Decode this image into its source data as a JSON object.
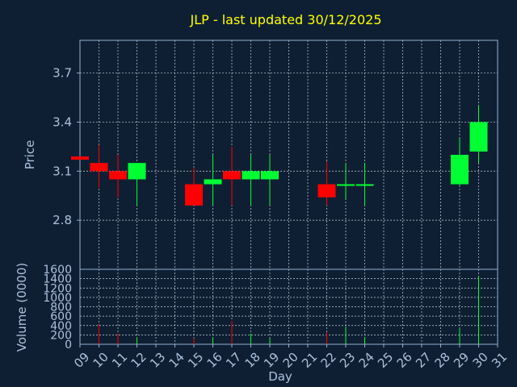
{
  "chart_data": {
    "type": "candlestick",
    "title": "JLP - last updated 30/12/2025",
    "xlabel": "Day",
    "price_ylabel": "Price",
    "volume_ylabel": "Volume (0000)",
    "x_ticks": [
      "09",
      "10",
      "11",
      "12",
      "13",
      "14",
      "15",
      "16",
      "17",
      "18",
      "19",
      "20",
      "21",
      "22",
      "23",
      "24",
      "25",
      "26",
      "27",
      "28",
      "29",
      "30",
      "31"
    ],
    "price_ylim": [
      2.5,
      3.9
    ],
    "price_ticks": [
      "2.8",
      "3.1",
      "3.4",
      "3.7"
    ],
    "volume_ylim": [
      0,
      1600
    ],
    "volume_ticks": [
      "0",
      "200",
      "400",
      "600",
      "800",
      "1000",
      "1200",
      "1400",
      "1600"
    ],
    "grid": true,
    "colors": {
      "background": "#0f1f33",
      "axis": "#8fb0d0",
      "grid": "#c8d2dc",
      "up": "#00ff33",
      "down": "#ff0000",
      "title": "#ffff00"
    },
    "candles": [
      {
        "day": 9,
        "open": 3.19,
        "high": 3.19,
        "low": 3.17,
        "close": 3.17,
        "volume": 0
      },
      {
        "day": 10,
        "open": 3.15,
        "high": 3.26,
        "low": 3.0,
        "close": 3.1,
        "volume": 420
      },
      {
        "day": 11,
        "open": 3.1,
        "high": 3.2,
        "low": 2.94,
        "close": 3.05,
        "volume": 230
      },
      {
        "day": 12,
        "open": 3.05,
        "high": 3.15,
        "low": 2.89,
        "close": 3.15,
        "volume": 150
      },
      {
        "day": 15,
        "open": 3.02,
        "high": 3.12,
        "low": 2.89,
        "close": 2.89,
        "volume": 130
      },
      {
        "day": 16,
        "open": 3.02,
        "high": 3.2,
        "low": 2.89,
        "close": 3.05,
        "volume": 150
      },
      {
        "day": 17,
        "open": 3.1,
        "high": 3.25,
        "low": 2.89,
        "close": 3.05,
        "volume": 500
      },
      {
        "day": 18,
        "open": 3.05,
        "high": 3.2,
        "low": 2.89,
        "close": 3.1,
        "volume": 230
      },
      {
        "day": 19,
        "open": 3.05,
        "high": 3.2,
        "low": 2.89,
        "close": 3.1,
        "volume": 130
      },
      {
        "day": 22,
        "open": 3.02,
        "high": 3.16,
        "low": 2.89,
        "close": 2.94,
        "volume": 260
      },
      {
        "day": 23,
        "open": 3.02,
        "high": 3.15,
        "low": 2.93,
        "close": 3.02,
        "volume": 380
      },
      {
        "day": 24,
        "open": 3.02,
        "high": 3.15,
        "low": 2.89,
        "close": 3.02,
        "volume": 150
      },
      {
        "day": 29,
        "open": 3.02,
        "high": 3.3,
        "low": 3.01,
        "close": 3.2,
        "volume": 330
      },
      {
        "day": 30,
        "open": 3.22,
        "high": 3.5,
        "low": 3.15,
        "close": 3.4,
        "volume": 1450
      }
    ]
  }
}
